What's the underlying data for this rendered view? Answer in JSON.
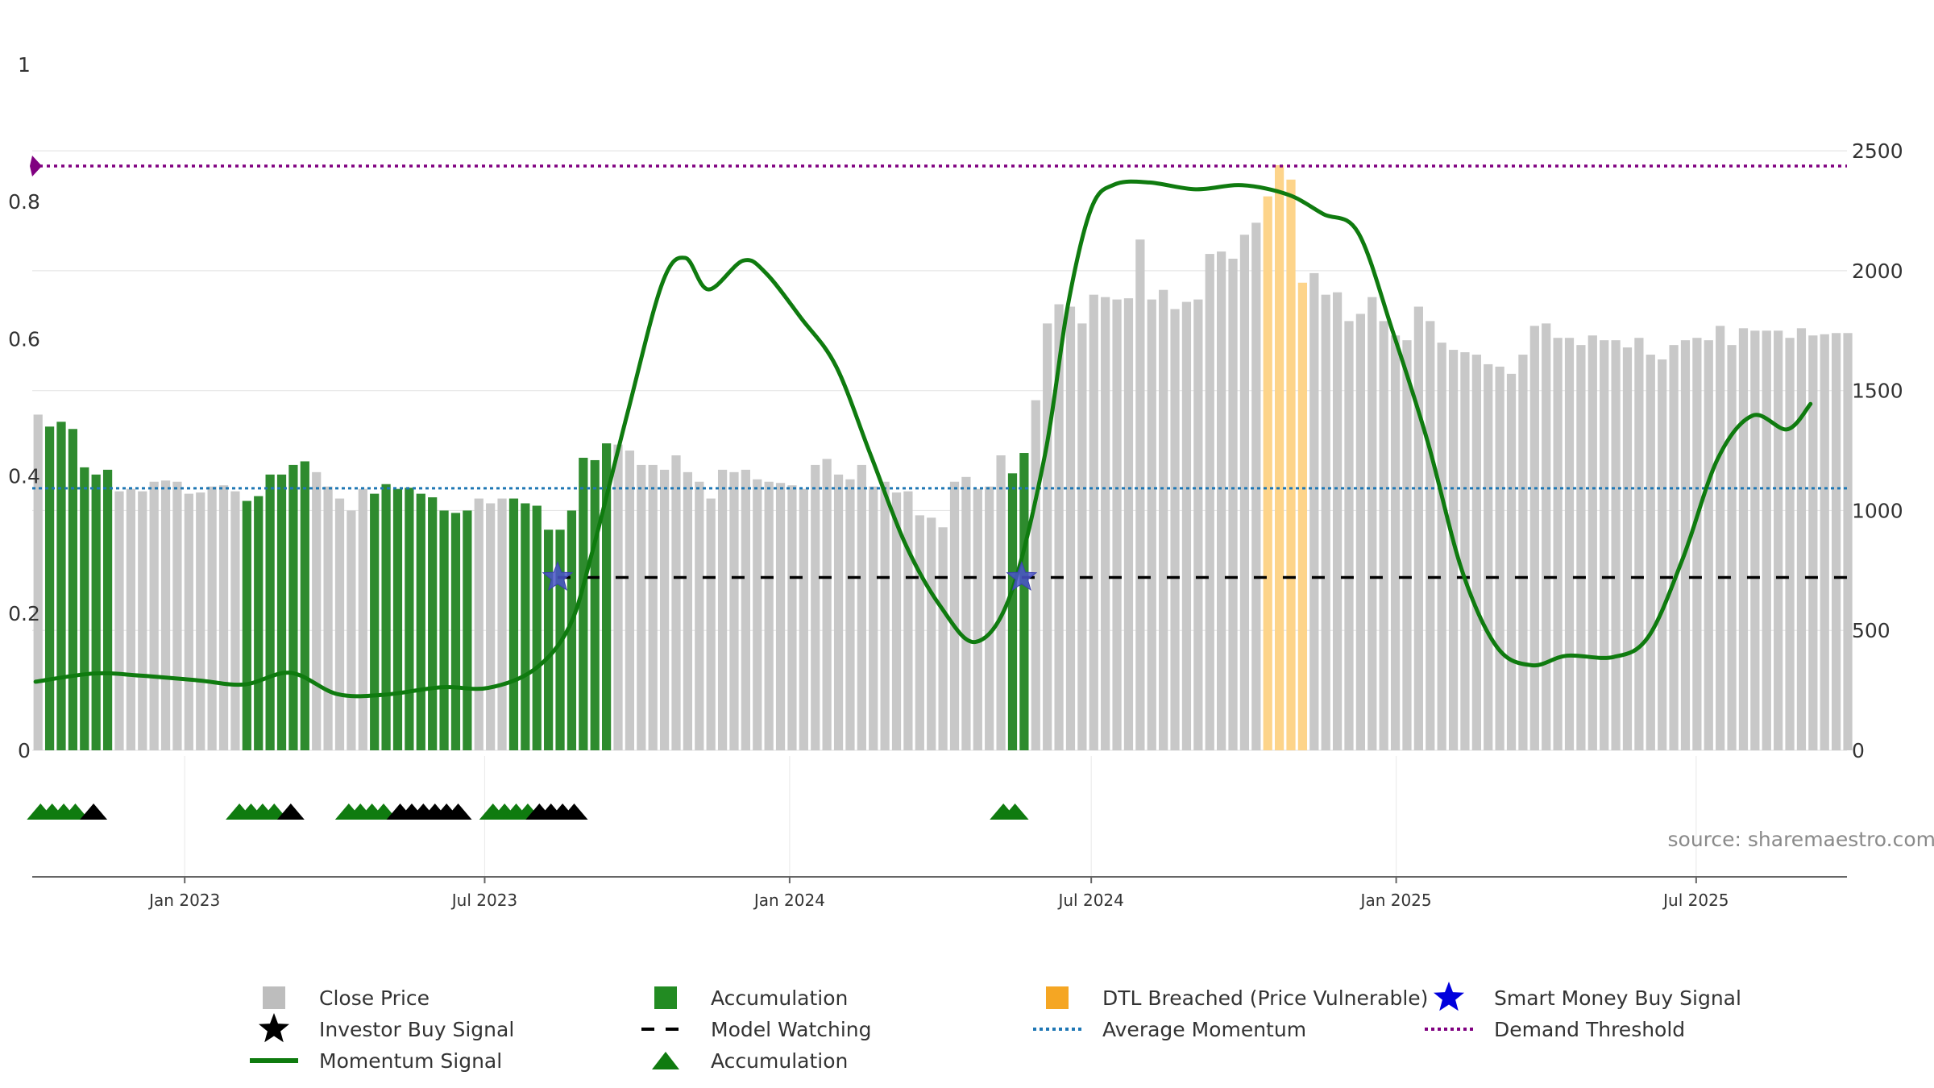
{
  "chart_data": {
    "type": "bar",
    "left_axis": {
      "ticks": [
        0,
        0.2,
        0.4,
        0.6,
        0.8,
        1
      ],
      "tick_labels": [
        "0",
        "0.2",
        "0.4",
        "0.6",
        "0.8",
        "1"
      ],
      "range": [
        0,
        1.0
      ]
    },
    "right_axis": {
      "ticks": [
        0,
        500,
        1000,
        1500,
        2000,
        2500
      ],
      "tick_labels": [
        "0",
        "500",
        "1000",
        "1500",
        "2000",
        "2500"
      ],
      "range": [
        0,
        2860
      ]
    },
    "x_axis": {
      "start": "2022-10-01",
      "end": "2025-09-30",
      "ticks": [
        {
          "date": "2023-01-01",
          "label": "Jan 2023"
        },
        {
          "date": "2023-07-01",
          "label": "Jul 2023"
        },
        {
          "date": "2024-01-01",
          "label": "Jan 2024"
        },
        {
          "date": "2024-07-01",
          "label": "Jul 2024"
        },
        {
          "date": "2025-01-01",
          "label": "Jan 2025"
        },
        {
          "date": "2025-07-01",
          "label": "Jul 2025"
        }
      ]
    },
    "grid": true,
    "price_series": {
      "name": "Close Price",
      "start_date": "2022-10-01",
      "step": "weekly",
      "values": [
        1400,
        1350,
        1370,
        1340,
        1180,
        1150,
        1170,
        1080,
        1090,
        1080,
        1120,
        1125,
        1120,
        1070,
        1075,
        1100,
        1105,
        1080,
        1040,
        1060,
        1150,
        1150,
        1190,
        1205,
        1160,
        1100,
        1050,
        1000,
        1090,
        1070,
        1110,
        1090,
        1095,
        1070,
        1055,
        1000,
        990,
        1000,
        1050,
        1030,
        1050,
        1050,
        1030,
        1020,
        920,
        920,
        1000,
        1220,
        1210,
        1280,
        1275,
        1250,
        1190,
        1190,
        1170,
        1230,
        1160,
        1120,
        1050,
        1170,
        1160,
        1170,
        1130,
        1120,
        1115,
        1105,
        1090,
        1190,
        1215,
        1150,
        1130,
        1190,
        1100,
        1120,
        1075,
        1080,
        980,
        970,
        930,
        1120,
        1140,
        1090,
        1100,
        1230,
        1155,
        1240,
        1460,
        1780,
        1860,
        1850,
        1780,
        1900,
        1890,
        1880,
        1885,
        2130,
        1880,
        1920,
        1840,
        1870,
        1880,
        2070,
        2080,
        2050,
        2150,
        2200,
        2310,
        2440,
        2380,
        1950,
        1990,
        1900,
        1910,
        1790,
        1820,
        1890,
        1790,
        1730,
        1710,
        1850,
        1790,
        1700,
        1670,
        1660,
        1650,
        1610,
        1600,
        1570,
        1650,
        1770,
        1780,
        1720,
        1720,
        1690,
        1730,
        1710,
        1710,
        1680,
        1720,
        1650,
        1630,
        1690,
        1710,
        1720,
        1710,
        1770,
        1690,
        1760,
        1750,
        1750,
        1750,
        1720,
        1760,
        1730,
        1735,
        1740,
        1740
      ],
      "color": "#c8c8c8"
    },
    "accumulation_weeks": [
      1,
      2,
      3,
      4,
      5,
      6,
      18,
      19,
      20,
      21,
      22,
      23,
      29,
      30,
      31,
      32,
      33,
      34,
      35,
      36,
      37,
      41,
      42,
      43,
      44,
      45,
      46,
      47,
      48,
      49,
      84,
      85
    ],
    "accumulation_color": "#2e8b2e",
    "dtl_weeks": [
      106,
      107,
      108,
      109
    ],
    "dtl_color": "#fdd48a",
    "momentum_signal": {
      "name": "Momentum Signal",
      "color": "#0f7b0f",
      "points": [
        [
          "2022-10-03",
          0.1
        ],
        [
          "2022-11-07",
          0.112
        ],
        [
          "2022-12-05",
          0.109
        ],
        [
          "2023-01-09",
          0.102
        ],
        [
          "2023-02-06",
          0.096
        ],
        [
          "2023-03-06",
          0.113
        ],
        [
          "2023-04-03",
          0.082
        ],
        [
          "2023-05-01",
          0.081
        ],
        [
          "2023-06-05",
          0.092
        ],
        [
          "2023-07-03",
          0.091
        ],
        [
          "2023-07-31",
          0.118
        ],
        [
          "2023-08-21",
          0.18
        ],
        [
          "2023-09-04",
          0.29
        ],
        [
          "2023-09-25",
          0.49
        ],
        [
          "2023-10-16",
          0.68
        ],
        [
          "2023-10-30",
          0.718
        ],
        [
          "2023-11-13",
          0.672
        ],
        [
          "2023-12-04",
          0.714
        ],
        [
          "2023-12-18",
          0.695
        ],
        [
          "2024-01-08",
          0.63
        ],
        [
          "2024-01-29",
          0.56
        ],
        [
          "2024-02-19",
          0.43
        ],
        [
          "2024-03-11",
          0.3
        ],
        [
          "2024-04-01",
          0.21
        ],
        [
          "2024-04-22",
          0.158
        ],
        [
          "2024-05-13",
          0.225
        ],
        [
          "2024-06-03",
          0.43
        ],
        [
          "2024-06-17",
          0.65
        ],
        [
          "2024-07-01",
          0.79
        ],
        [
          "2024-07-15",
          0.825
        ],
        [
          "2024-08-05",
          0.828
        ],
        [
          "2024-09-02",
          0.818
        ],
        [
          "2024-09-30",
          0.824
        ],
        [
          "2024-10-28",
          0.81
        ],
        [
          "2024-11-18",
          0.782
        ],
        [
          "2024-12-09",
          0.755
        ],
        [
          "2024-12-30",
          0.61
        ],
        [
          "2025-01-20",
          0.45
        ],
        [
          "2025-02-10",
          0.26
        ],
        [
          "2025-03-03",
          0.15
        ],
        [
          "2025-03-24",
          0.124
        ],
        [
          "2025-04-14",
          0.138
        ],
        [
          "2025-05-12",
          0.136
        ],
        [
          "2025-06-02",
          0.165
        ],
        [
          "2025-06-23",
          0.28
        ],
        [
          "2025-07-14",
          0.425
        ],
        [
          "2025-08-04",
          0.488
        ],
        [
          "2025-08-25",
          0.468
        ],
        [
          "2025-09-08",
          0.505
        ]
      ]
    },
    "average_momentum": {
      "name": "Average Momentum",
      "value": 0.382,
      "color": "#1f77b4"
    },
    "demand_threshold": {
      "name": "Demand Threshold",
      "value": 0.852,
      "color": "#800080"
    },
    "model_watching": {
      "name": "Model Watching",
      "value": 0.252,
      "from": "2023-08-14",
      "to": "2025-09-30",
      "color": "#000000"
    },
    "smart_money_buy_signals": [
      {
        "date": "2023-08-14",
        "value": 0.252
      },
      {
        "date": "2024-05-20",
        "value": 0.252
      }
    ],
    "event_markers": {
      "accumulation_color": "#0f7b0f",
      "investor_color": "#000000",
      "events": [
        {
          "date": "2022-10-06",
          "type": "accumulation"
        },
        {
          "date": "2022-10-13",
          "type": "accumulation"
        },
        {
          "date": "2022-10-20",
          "type": "accumulation"
        },
        {
          "date": "2022-10-27",
          "type": "accumulation"
        },
        {
          "date": "2022-11-07",
          "type": "investor"
        },
        {
          "date": "2023-02-03",
          "type": "accumulation"
        },
        {
          "date": "2023-02-10",
          "type": "accumulation"
        },
        {
          "date": "2023-02-17",
          "type": "accumulation"
        },
        {
          "date": "2023-02-24",
          "type": "accumulation"
        },
        {
          "date": "2023-03-06",
          "type": "investor"
        },
        {
          "date": "2023-04-10",
          "type": "accumulation"
        },
        {
          "date": "2023-04-17",
          "type": "accumulation"
        },
        {
          "date": "2023-04-24",
          "type": "accumulation"
        },
        {
          "date": "2023-05-01",
          "type": "accumulation"
        },
        {
          "date": "2023-05-11",
          "type": "investor"
        },
        {
          "date": "2023-05-18",
          "type": "investor"
        },
        {
          "date": "2023-05-25",
          "type": "investor"
        },
        {
          "date": "2023-06-01",
          "type": "investor"
        },
        {
          "date": "2023-06-08",
          "type": "investor"
        },
        {
          "date": "2023-06-15",
          "type": "investor"
        },
        {
          "date": "2023-07-06",
          "type": "accumulation"
        },
        {
          "date": "2023-07-13",
          "type": "accumulation"
        },
        {
          "date": "2023-07-20",
          "type": "accumulation"
        },
        {
          "date": "2023-07-27",
          "type": "accumulation"
        },
        {
          "date": "2023-08-03",
          "type": "investor"
        },
        {
          "date": "2023-08-10",
          "type": "investor"
        },
        {
          "date": "2023-08-17",
          "type": "investor"
        },
        {
          "date": "2023-08-24",
          "type": "investor"
        },
        {
          "date": "2024-05-09",
          "type": "accumulation"
        },
        {
          "date": "2024-05-16",
          "type": "accumulation"
        }
      ]
    }
  },
  "source_text": "source: sharemaestro.com",
  "legend": [
    {
      "label": "Close Price",
      "symbol": "gray-square-icon",
      "color": "#bdbdbd"
    },
    {
      "label": "Accumulation",
      "symbol": "green-square-icon",
      "color": "#228b22"
    },
    {
      "label": "DTL Breached (Price Vulnerable)",
      "symbol": "orange-square-icon",
      "color": "#f5a623"
    },
    {
      "label": "Smart Money Buy Signal",
      "symbol": "blue-star-icon",
      "color": "#0000dd"
    },
    {
      "label": "Investor Buy Signal",
      "symbol": "black-star-icon",
      "color": "#000000"
    },
    {
      "label": "Model Watching",
      "symbol": "black-dash-icon",
      "color": "#000000"
    },
    {
      "label": "Average Momentum",
      "symbol": "blue-dotted-line-icon",
      "color": "#1f77b4"
    },
    {
      "label": "Demand Threshold",
      "symbol": "purple-dotted-line-icon",
      "color": "#800080"
    },
    {
      "label": "Momentum Signal",
      "symbol": "green-line-icon",
      "color": "#0f7b0f"
    },
    {
      "label": "Accumulation",
      "symbol": "green-triangle-icon",
      "color": "#0f7b0f"
    }
  ]
}
